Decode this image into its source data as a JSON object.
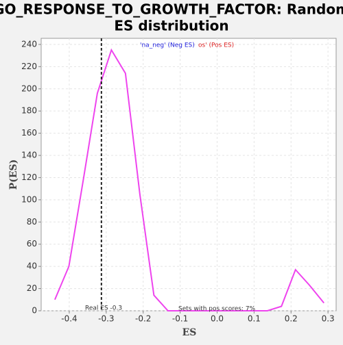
{
  "chart_data": {
    "type": "line",
    "title": "GO_RESPONSE_TO_GROWTH_FACTOR: Random",
    "subtitle": "ES distribution",
    "xlabel": "ES",
    "ylabel": "P(ES)",
    "x": [
      -0.439,
      -0.401,
      -0.362,
      -0.324,
      -0.286,
      -0.248,
      -0.209,
      -0.171,
      -0.133,
      -0.094,
      -0.056,
      -0.018,
      0.021,
      0.059,
      0.097,
      0.136,
      0.174,
      0.212,
      0.25,
      0.289
    ],
    "series": [
      {
        "name": "'na_neg' (Neg ES)",
        "color": "#ee44ee",
        "values": [
          10,
          40,
          118,
          196,
          235,
          214,
          105,
          14,
          0,
          0,
          0,
          0,
          0,
          0,
          0,
          0,
          4,
          37,
          23,
          7
        ]
      }
    ],
    "legend_labels": [
      {
        "text": "'na_neg' (Neg ES)",
        "color": "#2222dd"
      },
      {
        "text": "os' (Pos ES)",
        "color": "#dd2222"
      }
    ],
    "real_es": -0.313,
    "annotations": [
      "Real ES -0.3",
      "Sets with pos scores: 7%"
    ],
    "xlim": [
      -0.476,
      0.322
    ],
    "ylim": [
      0,
      245.5
    ],
    "xticks": [
      -0.4,
      -0.3,
      -0.2,
      -0.1,
      {
        "value": 0,
        "label": "0.0"
      },
      0.1,
      0.2,
      0.3
    ],
    "yticks": [
      0,
      20,
      40,
      60,
      80,
      100,
      120,
      140,
      160,
      180,
      200,
      220,
      240
    ],
    "grid": true
  }
}
